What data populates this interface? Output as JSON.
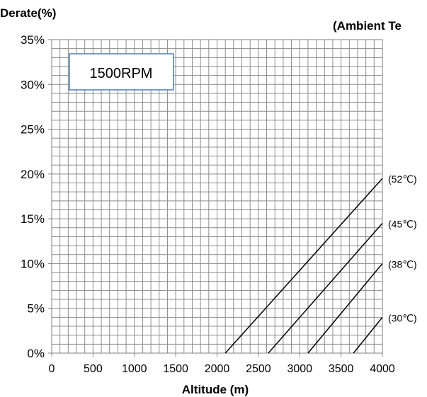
{
  "chart_data": {
    "type": "line",
    "ylabel": "Derate(%)",
    "legend_title": "(Ambient Te",
    "xlabel": "Altitude (m)",
    "annotation": "1500RPM",
    "xlim": [
      0,
      4000
    ],
    "ylim": [
      0,
      35
    ],
    "x_ticks": [
      "0",
      "500",
      "1000",
      "1500",
      "2000",
      "2500",
      "3000",
      "3500",
      "4000"
    ],
    "y_ticks": [
      "0%",
      "5%",
      "10%",
      "15%",
      "20%",
      "25%",
      "30%",
      "35%"
    ],
    "grid": true,
    "series": [
      {
        "name": "(52℃)",
        "x": [
          2100,
          4000
        ],
        "y": [
          0,
          19.5
        ]
      },
      {
        "name": "(45℃)",
        "x": [
          2620,
          4000
        ],
        "y": [
          0,
          14.5
        ]
      },
      {
        "name": "(38℃)",
        "x": [
          3100,
          4000
        ],
        "y": [
          0,
          10
        ]
      },
      {
        "name": "(30℃)",
        "x": [
          3650,
          4000
        ],
        "y": [
          0,
          4
        ]
      }
    ]
  }
}
